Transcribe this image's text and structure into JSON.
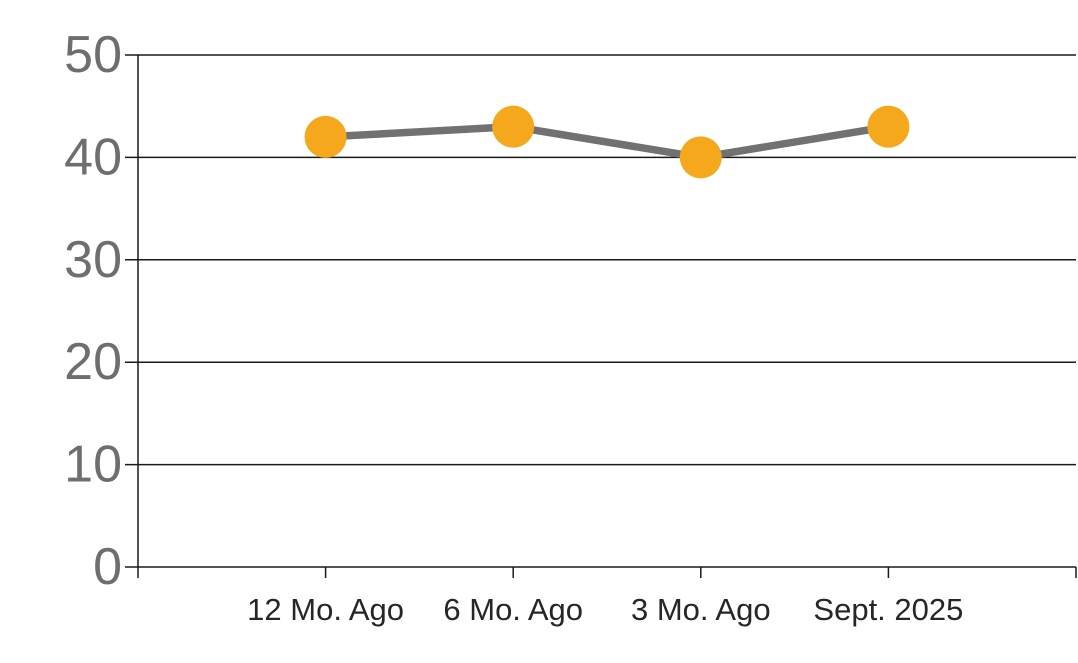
{
  "chart_data": {
    "type": "line",
    "categories": [
      "12 Mo. Ago",
      "6 Mo. Ago",
      "3 Mo. Ago",
      "Sept. 2025"
    ],
    "series": [
      {
        "name": "",
        "values": [
          42,
          43,
          40,
          43
        ]
      }
    ],
    "title": "",
    "xlabel": "",
    "ylabel": "",
    "ylim": [
      0,
      50
    ],
    "yticks": [
      0,
      10,
      20,
      30,
      40,
      50
    ],
    "grid": "horizontal",
    "legend": "none",
    "marker": "circle",
    "colors": {
      "marker": "#F6A81D",
      "line": "#717171",
      "grid": "#1A1A1A",
      "y_tick_label": "#6E6E6E",
      "x_tick_label": "#262626",
      "background": "#FFFFFF"
    }
  }
}
